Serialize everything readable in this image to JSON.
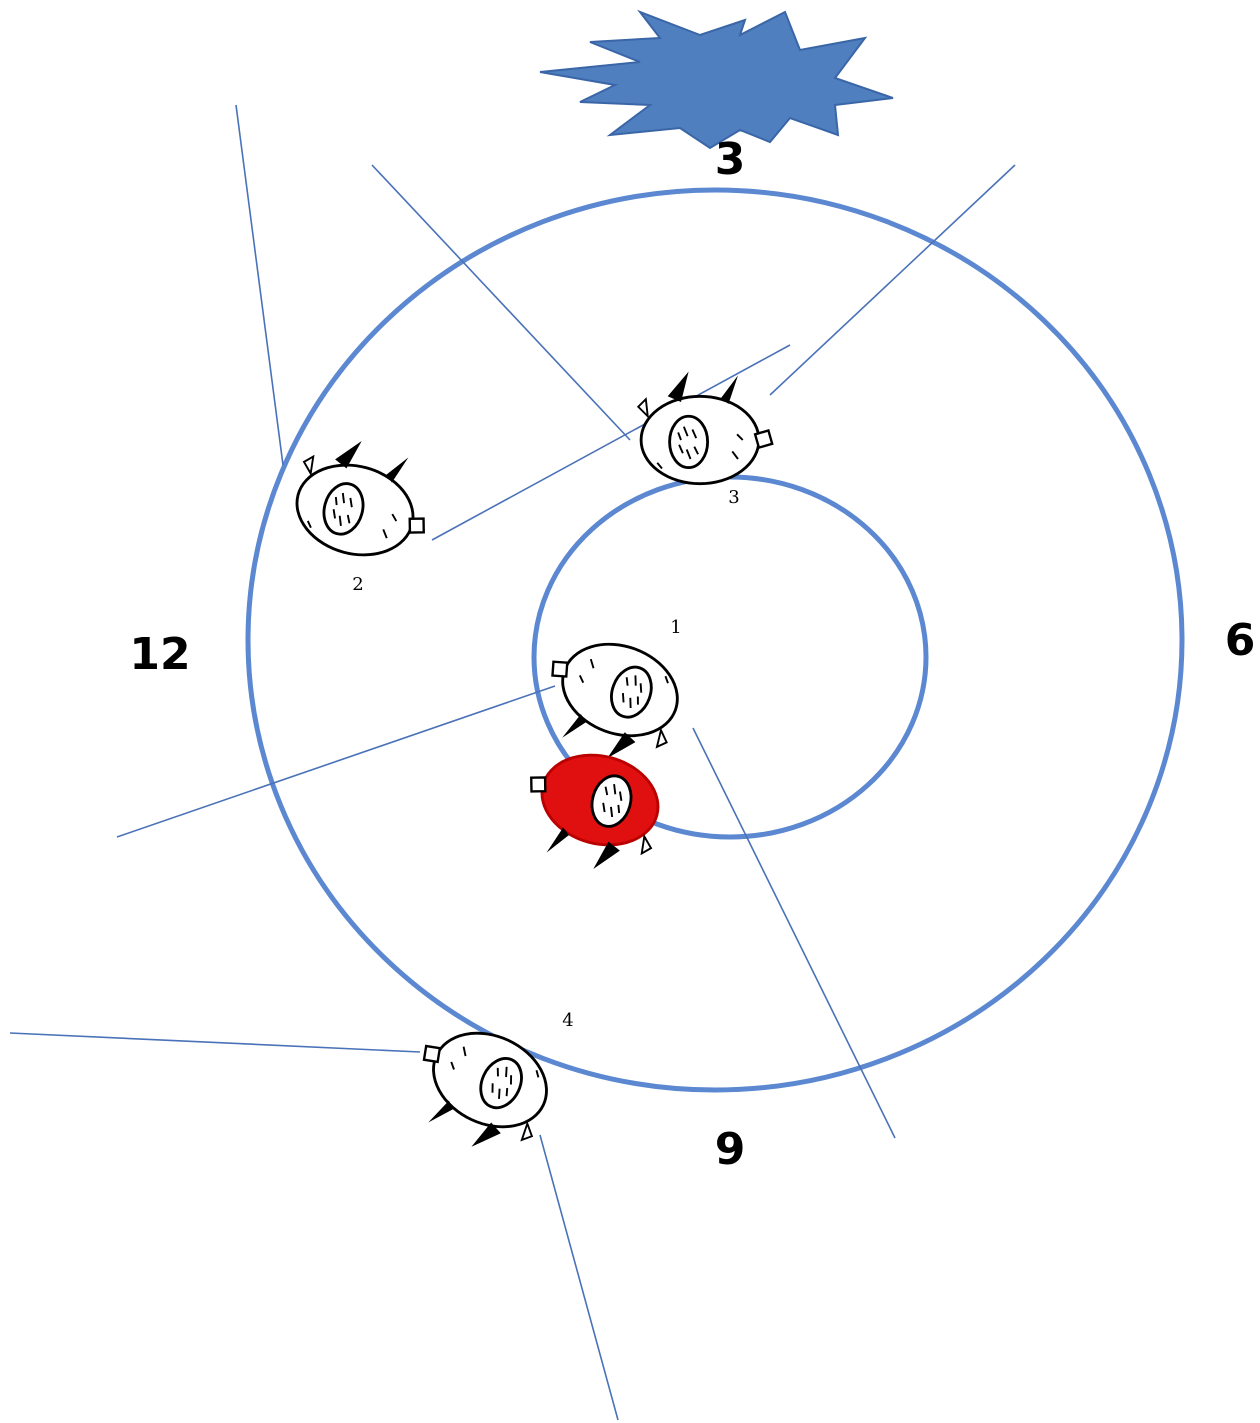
{
  "compass": {
    "top": "3",
    "right": "6",
    "bottom": "9",
    "left": "12"
  },
  "pigs": [
    {
      "label": "1"
    },
    {
      "label": "2"
    },
    {
      "label": "3"
    },
    {
      "label": "4"
    }
  ]
}
